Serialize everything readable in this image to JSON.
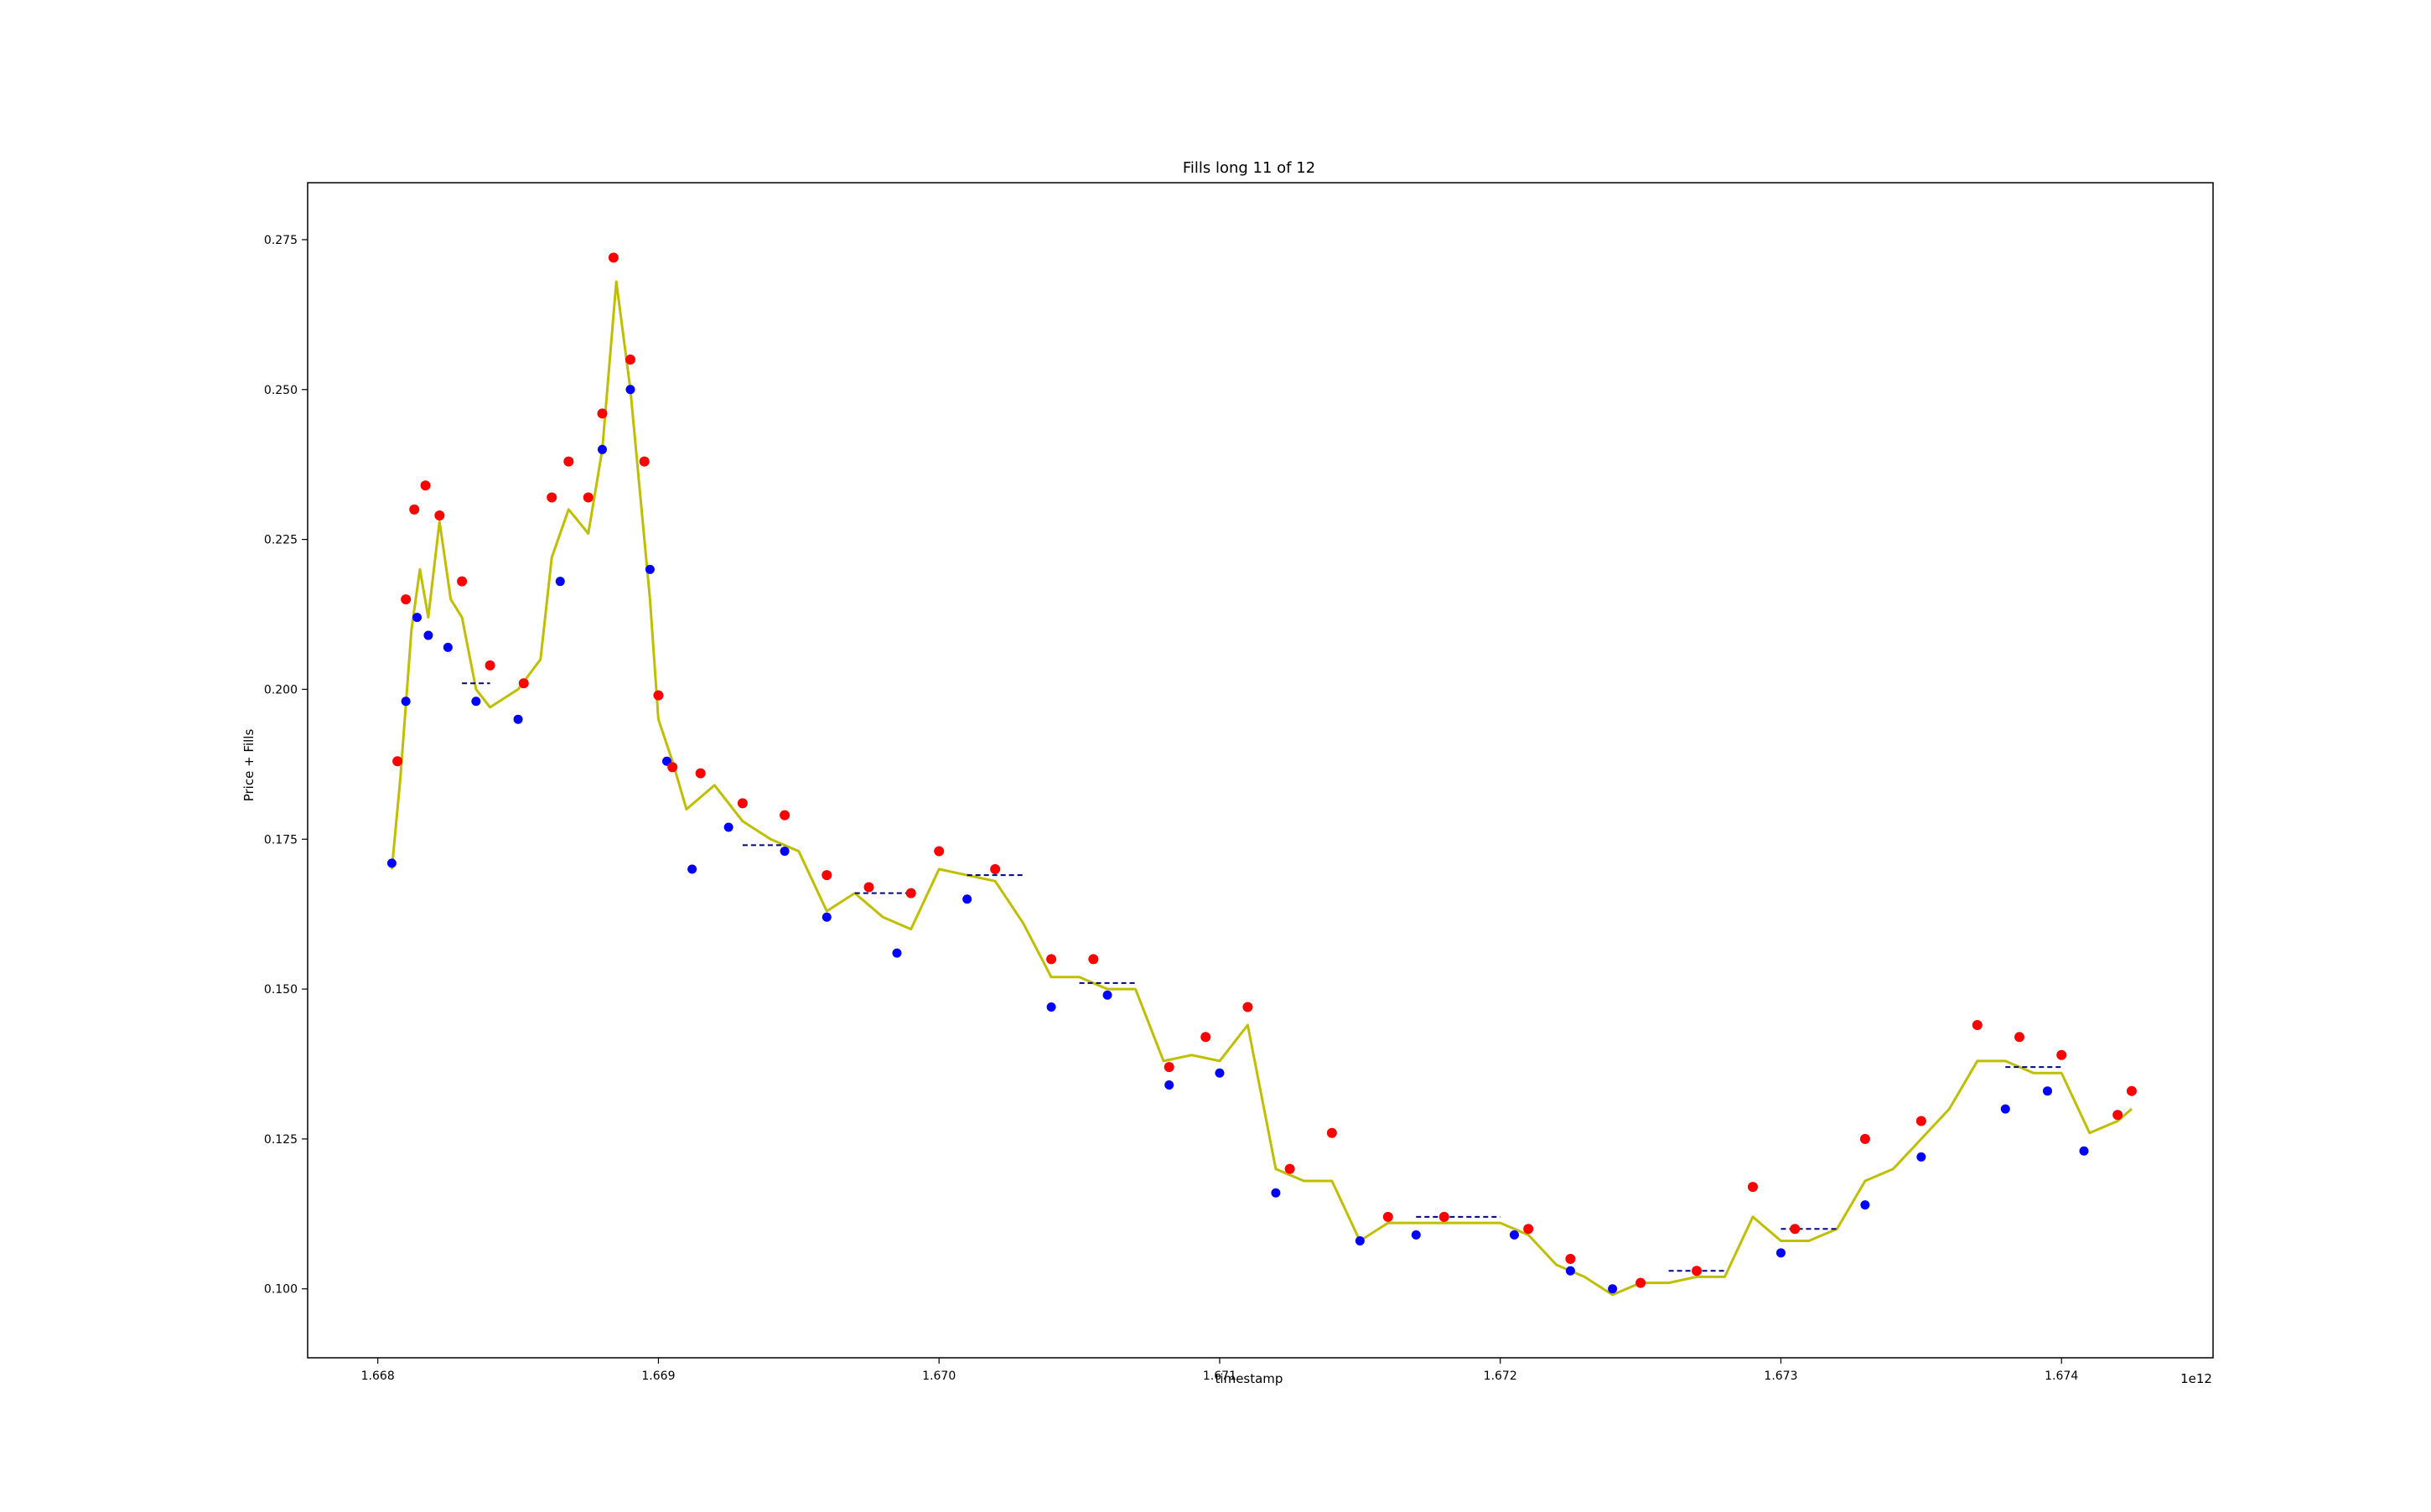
{
  "chart_data": {
    "type": "line",
    "title": "Fills long 11 of 12",
    "xlabel": "timestamp",
    "ylabel": "Price + Fills",
    "x_offset_label": "1e12",
    "xlim": [
      1.66775,
      1.67454
    ],
    "ylim": [
      0.0885,
      0.2845
    ],
    "x_ticks": [
      1.668,
      1.669,
      1.67,
      1.671,
      1.672,
      1.673,
      1.674
    ],
    "x_tick_labels": [
      "1.668",
      "1.669",
      "1.670",
      "1.671",
      "1.672",
      "1.673",
      "1.674"
    ],
    "y_ticks": [
      0.1,
      0.125,
      0.15,
      0.175,
      0.2,
      0.225,
      0.25,
      0.275
    ],
    "y_tick_labels": [
      "0.100",
      "0.125",
      "0.150",
      "0.175",
      "0.200",
      "0.225",
      "0.250",
      "0.275"
    ],
    "grid": false,
    "colors": {
      "price": "#bfbf00",
      "long_entry": "#0000ff",
      "long_close": "#ff0000",
      "position_price": "#000080"
    },
    "series": [
      {
        "role": "price",
        "values": [
          [
            1.66805,
            0.17
          ],
          [
            1.66808,
            0.185
          ],
          [
            1.66812,
            0.21
          ],
          [
            1.66815,
            0.22
          ],
          [
            1.66818,
            0.212
          ],
          [
            1.66822,
            0.228
          ],
          [
            1.66826,
            0.215
          ],
          [
            1.6683,
            0.212
          ],
          [
            1.66835,
            0.2
          ],
          [
            1.6684,
            0.197
          ],
          [
            1.6685,
            0.2
          ],
          [
            1.66858,
            0.205
          ],
          [
            1.66862,
            0.222
          ],
          [
            1.66868,
            0.23
          ],
          [
            1.66875,
            0.226
          ],
          [
            1.6688,
            0.24
          ],
          [
            1.66885,
            0.268
          ],
          [
            1.6689,
            0.25
          ],
          [
            1.66893,
            0.235
          ],
          [
            1.66897,
            0.215
          ],
          [
            1.669,
            0.195
          ],
          [
            1.66905,
            0.188
          ],
          [
            1.6691,
            0.18
          ],
          [
            1.6692,
            0.184
          ],
          [
            1.6693,
            0.178
          ],
          [
            1.6694,
            0.175
          ],
          [
            1.6695,
            0.173
          ],
          [
            1.6696,
            0.163
          ],
          [
            1.6697,
            0.166
          ],
          [
            1.6698,
            0.162
          ],
          [
            1.6699,
            0.16
          ],
          [
            1.67,
            0.17
          ],
          [
            1.6701,
            0.169
          ],
          [
            1.6702,
            0.168
          ],
          [
            1.6703,
            0.161
          ],
          [
            1.6704,
            0.152
          ],
          [
            1.6705,
            0.152
          ],
          [
            1.6706,
            0.15
          ],
          [
            1.6707,
            0.15
          ],
          [
            1.6708,
            0.138
          ],
          [
            1.6709,
            0.139
          ],
          [
            1.671,
            0.138
          ],
          [
            1.6711,
            0.144
          ],
          [
            1.6712,
            0.12
          ],
          [
            1.6713,
            0.118
          ],
          [
            1.6714,
            0.118
          ],
          [
            1.6715,
            0.108
          ],
          [
            1.6716,
            0.111
          ],
          [
            1.6717,
            0.111
          ],
          [
            1.6718,
            0.111
          ],
          [
            1.6719,
            0.111
          ],
          [
            1.672,
            0.111
          ],
          [
            1.6721,
            0.109
          ],
          [
            1.6722,
            0.104
          ],
          [
            1.6723,
            0.102
          ],
          [
            1.6724,
            0.099
          ],
          [
            1.6725,
            0.101
          ],
          [
            1.6726,
            0.101
          ],
          [
            1.6727,
            0.102
          ],
          [
            1.6728,
            0.102
          ],
          [
            1.6729,
            0.112
          ],
          [
            1.673,
            0.108
          ],
          [
            1.6731,
            0.108
          ],
          [
            1.6732,
            0.11
          ],
          [
            1.6733,
            0.118
          ],
          [
            1.6734,
            0.12
          ],
          [
            1.6735,
            0.125
          ],
          [
            1.6736,
            0.13
          ],
          [
            1.6737,
            0.138
          ],
          [
            1.6738,
            0.138
          ],
          [
            1.6739,
            0.136
          ],
          [
            1.674,
            0.136
          ],
          [
            1.6741,
            0.126
          ],
          [
            1.6742,
            0.128
          ],
          [
            1.67425,
            0.13
          ]
        ]
      },
      {
        "role": "long_entry",
        "values": [
          [
            1.66805,
            0.171
          ],
          [
            1.6681,
            0.198
          ],
          [
            1.66814,
            0.212
          ],
          [
            1.66818,
            0.209
          ],
          [
            1.66825,
            0.207
          ],
          [
            1.66835,
            0.198
          ],
          [
            1.6685,
            0.195
          ],
          [
            1.66865,
            0.218
          ],
          [
            1.6688,
            0.24
          ],
          [
            1.6689,
            0.25
          ],
          [
            1.66897,
            0.22
          ],
          [
            1.66903,
            0.188
          ],
          [
            1.66912,
            0.17
          ],
          [
            1.66925,
            0.177
          ],
          [
            1.66945,
            0.173
          ],
          [
            1.6696,
            0.162
          ],
          [
            1.66985,
            0.156
          ],
          [
            1.6701,
            0.165
          ],
          [
            1.6704,
            0.147
          ],
          [
            1.6706,
            0.149
          ],
          [
            1.67082,
            0.134
          ],
          [
            1.671,
            0.136
          ],
          [
            1.6712,
            0.116
          ],
          [
            1.6715,
            0.108
          ],
          [
            1.6717,
            0.109
          ],
          [
            1.67205,
            0.109
          ],
          [
            1.67225,
            0.103
          ],
          [
            1.6724,
            0.1
          ],
          [
            1.673,
            0.106
          ],
          [
            1.6733,
            0.114
          ],
          [
            1.6735,
            0.122
          ],
          [
            1.6738,
            0.13
          ],
          [
            1.67395,
            0.133
          ],
          [
            1.67408,
            0.123
          ]
        ]
      },
      {
        "role": "long_close",
        "values": [
          [
            1.66807,
            0.188
          ],
          [
            1.6681,
            0.215
          ],
          [
            1.66813,
            0.23
          ],
          [
            1.66817,
            0.234
          ],
          [
            1.66822,
            0.229
          ],
          [
            1.6683,
            0.218
          ],
          [
            1.6684,
            0.204
          ],
          [
            1.66852,
            0.201
          ],
          [
            1.66862,
            0.232
          ],
          [
            1.66868,
            0.238
          ],
          [
            1.66875,
            0.232
          ],
          [
            1.6688,
            0.246
          ],
          [
            1.66884,
            0.272
          ],
          [
            1.6689,
            0.255
          ],
          [
            1.66895,
            0.238
          ],
          [
            1.669,
            0.199
          ],
          [
            1.66905,
            0.187
          ],
          [
            1.66915,
            0.186
          ],
          [
            1.6693,
            0.181
          ],
          [
            1.66945,
            0.179
          ],
          [
            1.6696,
            0.169
          ],
          [
            1.66975,
            0.167
          ],
          [
            1.6699,
            0.166
          ],
          [
            1.67,
            0.173
          ],
          [
            1.6702,
            0.17
          ],
          [
            1.6704,
            0.155
          ],
          [
            1.67055,
            0.155
          ],
          [
            1.67082,
            0.137
          ],
          [
            1.67095,
            0.142
          ],
          [
            1.6711,
            0.147
          ],
          [
            1.67125,
            0.12
          ],
          [
            1.6714,
            0.126
          ],
          [
            1.6716,
            0.112
          ],
          [
            1.6718,
            0.112
          ],
          [
            1.6721,
            0.11
          ],
          [
            1.67225,
            0.105
          ],
          [
            1.6725,
            0.101
          ],
          [
            1.6727,
            0.103
          ],
          [
            1.6729,
            0.117
          ],
          [
            1.67305,
            0.11
          ],
          [
            1.6733,
            0.125
          ],
          [
            1.6735,
            0.128
          ],
          [
            1.6737,
            0.144
          ],
          [
            1.67385,
            0.142
          ],
          [
            1.674,
            0.139
          ],
          [
            1.6742,
            0.129
          ],
          [
            1.67425,
            0.133
          ]
        ]
      },
      {
        "role": "position_price",
        "values": [
          [
            1.6683,
            0.201
          ],
          [
            1.6684,
            0.201
          ],
          [
            1.6693,
            0.174
          ],
          [
            1.66945,
            0.174
          ],
          [
            1.6697,
            0.166
          ],
          [
            1.6699,
            0.166
          ],
          [
            1.6701,
            0.169
          ],
          [
            1.6703,
            0.169
          ],
          [
            1.6705,
            0.151
          ],
          [
            1.6707,
            0.151
          ],
          [
            1.6717,
            0.112
          ],
          [
            1.672,
            0.112
          ],
          [
            1.6726,
            0.103
          ],
          [
            1.6728,
            0.103
          ],
          [
            1.673,
            0.11
          ],
          [
            1.6732,
            0.11
          ],
          [
            1.6738,
            0.137
          ],
          [
            1.674,
            0.137
          ]
        ]
      }
    ]
  }
}
